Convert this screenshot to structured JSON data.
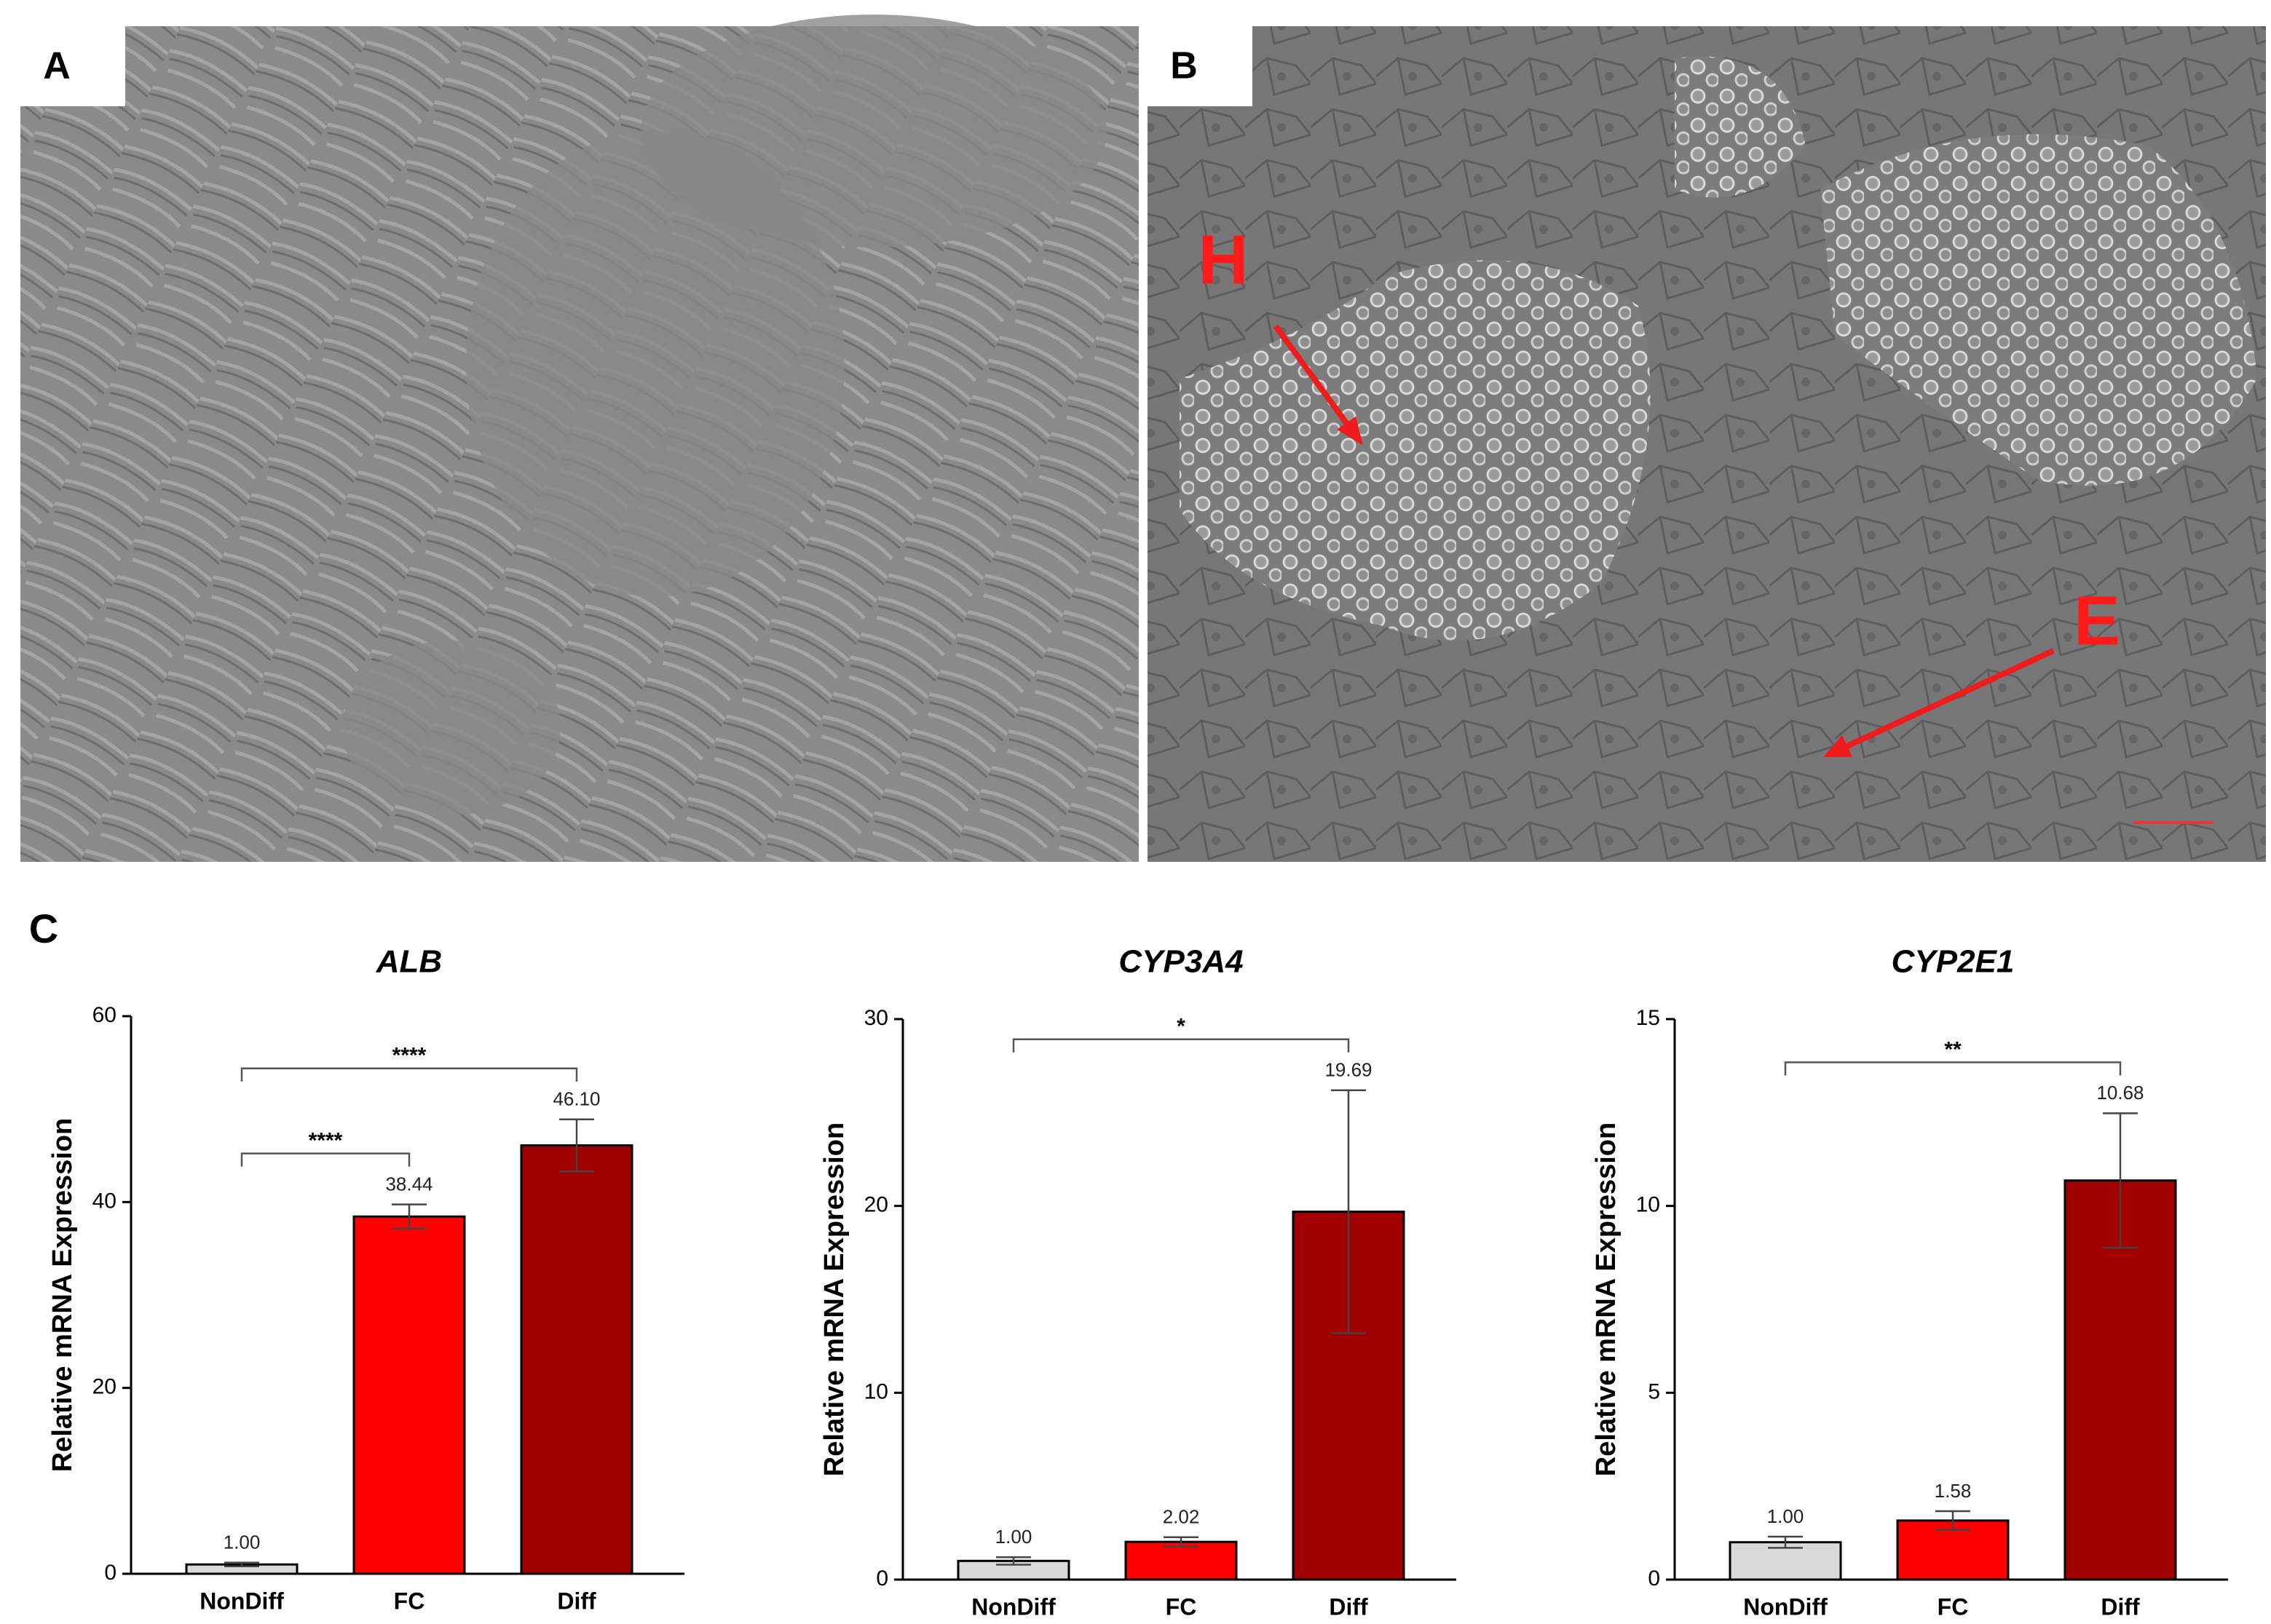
{
  "panels": {
    "a": "A",
    "b": "B",
    "c": "C"
  },
  "annotations": {
    "h": "H",
    "e": "E"
  },
  "chart_data": [
    {
      "type": "bar",
      "title": "ALB",
      "ylabel": "Relative mRNA Expression",
      "categories": [
        "NonDiff",
        "FC",
        "Diff"
      ],
      "values": [
        1.0,
        38.44,
        46.1
      ],
      "value_labels": [
        "1.00",
        "38.44",
        "46.10"
      ],
      "errors": [
        0.2,
        1.3,
        2.8
      ],
      "colors": [
        "#d9d9d9",
        "#ff0000",
        "#a00000"
      ],
      "ylim": [
        0,
        60
      ],
      "yticks": [
        0,
        20,
        40,
        60
      ],
      "comparisons": [
        {
          "groups": [
            "NonDiff",
            "FC"
          ],
          "label": "****"
        },
        {
          "groups": [
            "NonDiff",
            "Diff"
          ],
          "label": "****"
        }
      ]
    },
    {
      "type": "bar",
      "title": "CYP3A4",
      "ylabel": "Relative mRNA Expression",
      "categories": [
        "NonDiff",
        "FC",
        "Diff"
      ],
      "values": [
        1.0,
        2.02,
        19.69
      ],
      "value_labels": [
        "1.00",
        "2.02",
        "19.69"
      ],
      "errors": [
        0.2,
        0.25,
        6.5
      ],
      "colors": [
        "#d9d9d9",
        "#ff0000",
        "#a00000"
      ],
      "ylim": [
        0,
        30
      ],
      "yticks": [
        0,
        10,
        20,
        30
      ],
      "comparisons": [
        {
          "groups": [
            "NonDiff",
            "Diff"
          ],
          "label": "*"
        }
      ]
    },
    {
      "type": "bar",
      "title": "CYP2E1",
      "ylabel": "Relative mRNA Expression",
      "categories": [
        "NonDiff",
        "FC",
        "Diff"
      ],
      "values": [
        1.0,
        1.58,
        10.68
      ],
      "value_labels": [
        "1.00",
        "1.58",
        "10.68"
      ],
      "errors": [
        0.15,
        0.25,
        1.8
      ],
      "colors": [
        "#d9d9d9",
        "#ff0000",
        "#a00000"
      ],
      "ylim": [
        0,
        15
      ],
      "yticks": [
        0,
        5,
        10,
        15
      ],
      "comparisons": [
        {
          "groups": [
            "NonDiff",
            "Diff"
          ],
          "label": "**"
        }
      ]
    }
  ]
}
